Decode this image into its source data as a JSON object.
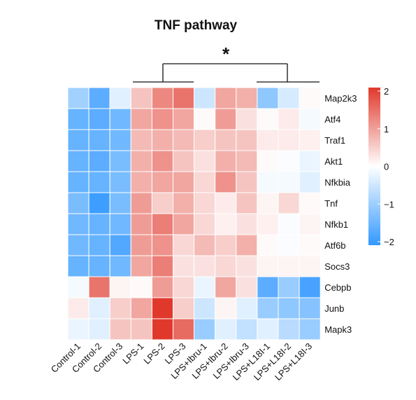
{
  "chart_data": {
    "type": "heatmap",
    "title": "TNF pathway",
    "columns": [
      "Control-1",
      "Control-2",
      "Control-3",
      "LPS-1",
      "LPS-2",
      "LPS-3",
      "LPS+Ibru-1",
      "LPS+Ibru-2",
      "LPS+Ibru-3",
      "LPS+L18I-1",
      "LPS+L18I-2",
      "LPS+L18I-3"
    ],
    "rows": [
      "Map2k3",
      "Atf4",
      "Traf1",
      "Akt1",
      "Nfkbia",
      "Tnf",
      "Nfkb1",
      "Atf6b",
      "Socs3",
      "Cebpb",
      "Junb",
      "Mapk3"
    ],
    "values": [
      [
        -0.9,
        -1.6,
        -0.3,
        0.6,
        1.2,
        1.4,
        -0.5,
        0.9,
        0.8,
        -1.1,
        -0.4,
        0.05
      ],
      [
        -1.5,
        -1.6,
        -1.4,
        0.9,
        1.1,
        0.9,
        0.05,
        1.0,
        0.3,
        0.05,
        0.2,
        -0.1
      ],
      [
        -1.5,
        -1.5,
        -1.4,
        0.7,
        0.8,
        0.7,
        0.5,
        0.6,
        0.6,
        0.2,
        0.2,
        0.15
      ],
      [
        -1.5,
        -1.6,
        -1.3,
        0.8,
        1.1,
        0.6,
        0.3,
        0.8,
        0.7,
        0.05,
        -0.05,
        -0.2
      ],
      [
        -1.5,
        -1.5,
        -1.3,
        0.8,
        0.9,
        0.9,
        0.4,
        1.1,
        0.6,
        -0.1,
        -0.1,
        -0.3
      ],
      [
        -1.3,
        -1.9,
        -1.3,
        1.0,
        0.5,
        0.8,
        0.4,
        0.2,
        0.6,
        0.1,
        0.4,
        0.05
      ],
      [
        -1.4,
        -1.5,
        -1.4,
        1.0,
        1.3,
        0.9,
        0.4,
        0.15,
        0.3,
        0.15,
        -0.05,
        0.1
      ],
      [
        -1.4,
        -1.5,
        -1.7,
        1.0,
        1.1,
        0.4,
        0.7,
        0.5,
        0.8,
        0.05,
        -0.05,
        0.05
      ],
      [
        -1.5,
        -1.5,
        -1.4,
        0.9,
        1.3,
        0.3,
        0.3,
        0.4,
        0.3,
        0.1,
        0.1,
        0.1
      ],
      [
        -0.1,
        1.4,
        0.1,
        0.05,
        1.0,
        0.4,
        -0.2,
        0.9,
        0.3,
        -1.6,
        -1.0,
        -1.8
      ],
      [
        0.2,
        -0.3,
        0.5,
        0.9,
        2.2,
        0.5,
        -0.5,
        0.1,
        -0.3,
        -1.0,
        -1.1,
        -1.2
      ],
      [
        -0.2,
        -0.3,
        0.6,
        0.6,
        2.1,
        1.5,
        -1.0,
        -0.3,
        -0.6,
        -0.3,
        -0.7,
        -1.0
      ]
    ],
    "color_scale": {
      "min": -2,
      "max": 2,
      "low": "#3399ff",
      "mid": "#ffffff",
      "high": "#e0392c"
    },
    "legend_ticks": [
      2,
      1,
      0,
      -1,
      -2
    ],
    "legend_tick_labels": [
      "2",
      "1",
      "0",
      "−1",
      "−2"
    ],
    "legend_placement": "right",
    "annotation": "*"
  }
}
